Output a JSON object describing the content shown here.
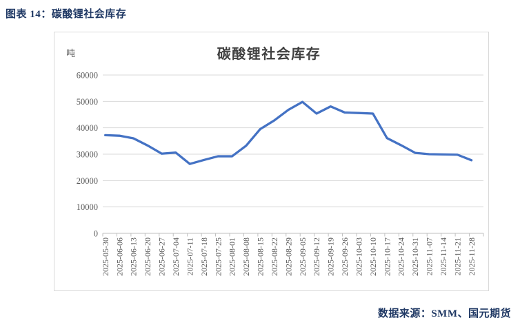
{
  "header": {
    "caption": "图表 14：碳酸锂社会库存"
  },
  "chart_data": {
    "type": "line",
    "title": "碳酸锂社会库存",
    "unit_label": "吨",
    "xlabel": "",
    "ylabel": "吨",
    "ylim": [
      0,
      60000
    ],
    "yticks": [
      0,
      10000,
      20000,
      30000,
      40000,
      50000,
      60000
    ],
    "grid": true,
    "legend_position": "none",
    "categories": [
      "2025-05-30",
      "2025-06-06",
      "2025-06-13",
      "2025-06-20",
      "2025-06-27",
      "2025-07-04",
      "2025-07-11",
      "2025-07-18",
      "2025-07-25",
      "2025-08-01",
      "2025-08-08",
      "2025-08-15",
      "2025-08-22",
      "2025-08-29",
      "2025-09-05",
      "2025-09-12",
      "2025-09-19",
      "2025-09-26",
      "2025-10-03",
      "2025-10-10",
      "2025-10-17",
      "2025-10-24",
      "2025-10-31",
      "2025-11-07",
      "2025-11-14",
      "2025-11-21",
      "2025-11-28"
    ],
    "series": [
      {
        "name": "碳酸锂社会库存",
        "color": "#4472C4",
        "values": [
          37200,
          37000,
          36000,
          33300,
          30200,
          30600,
          26300,
          27800,
          29200,
          29200,
          33200,
          39500,
          42800,
          46800,
          49800,
          45400,
          48100,
          45800,
          45600,
          45400,
          36100,
          33400,
          30500,
          30000,
          29900,
          29800,
          27700
        ]
      }
    ]
  },
  "footer": {
    "source": "数据来源：SMM、国元期货"
  },
  "colors": {
    "caption_text": "#1F3864",
    "source_text": "#1F3864",
    "series_line": "#4472C4",
    "gridline": "#D9D9D9",
    "axis_line": "#BFBFBF",
    "tick_label": "#595959",
    "chart_title": "#404040",
    "frame_border": "#D9D9D9"
  }
}
